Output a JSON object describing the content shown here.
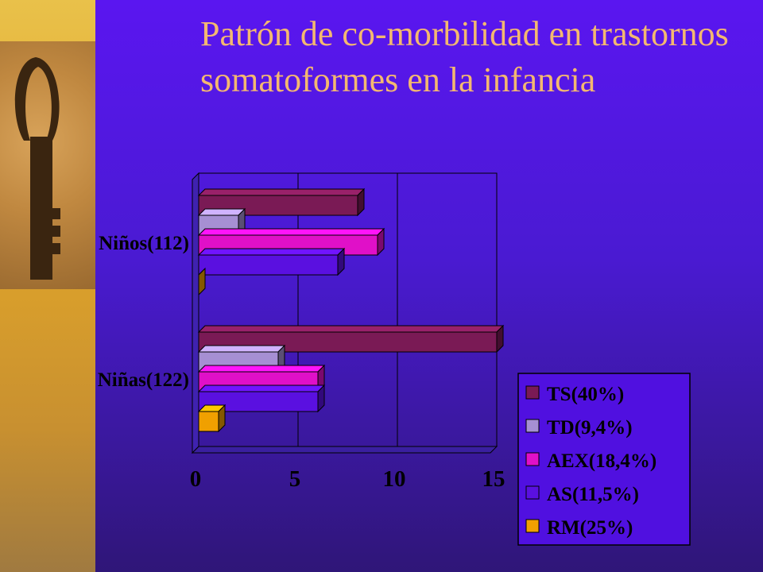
{
  "title": "Patrón de co-morbilidad en trastornos somatoformes en la infancia",
  "colors": {
    "TS": "#7a1a55",
    "TD": "#a68fd3",
    "AEX": "#e010c8",
    "AS": "#5a10e0",
    "RM": "#f0a000"
  },
  "chart_data": {
    "type": "bar",
    "orientation": "horizontal",
    "categories": [
      "Niños(112)",
      "Niñas(122)"
    ],
    "series": [
      {
        "name": "TS(40%)",
        "key": "TS",
        "values": [
          8,
          15
        ]
      },
      {
        "name": "TD(9,4%)",
        "key": "TD",
        "values": [
          2,
          4
        ]
      },
      {
        "name": "AEX(18,4%)",
        "key": "AEX",
        "values": [
          9,
          6
        ]
      },
      {
        "name": "AS(11,5%)",
        "key": "AS",
        "values": [
          7,
          6
        ]
      },
      {
        "name": "RM(25%)",
        "key": "RM",
        "values": [
          0,
          1
        ]
      }
    ],
    "xlim": [
      0,
      15
    ],
    "xticks": [
      "0",
      "5",
      "10",
      "15"
    ],
    "grid": true,
    "legend": "bottom-right"
  }
}
